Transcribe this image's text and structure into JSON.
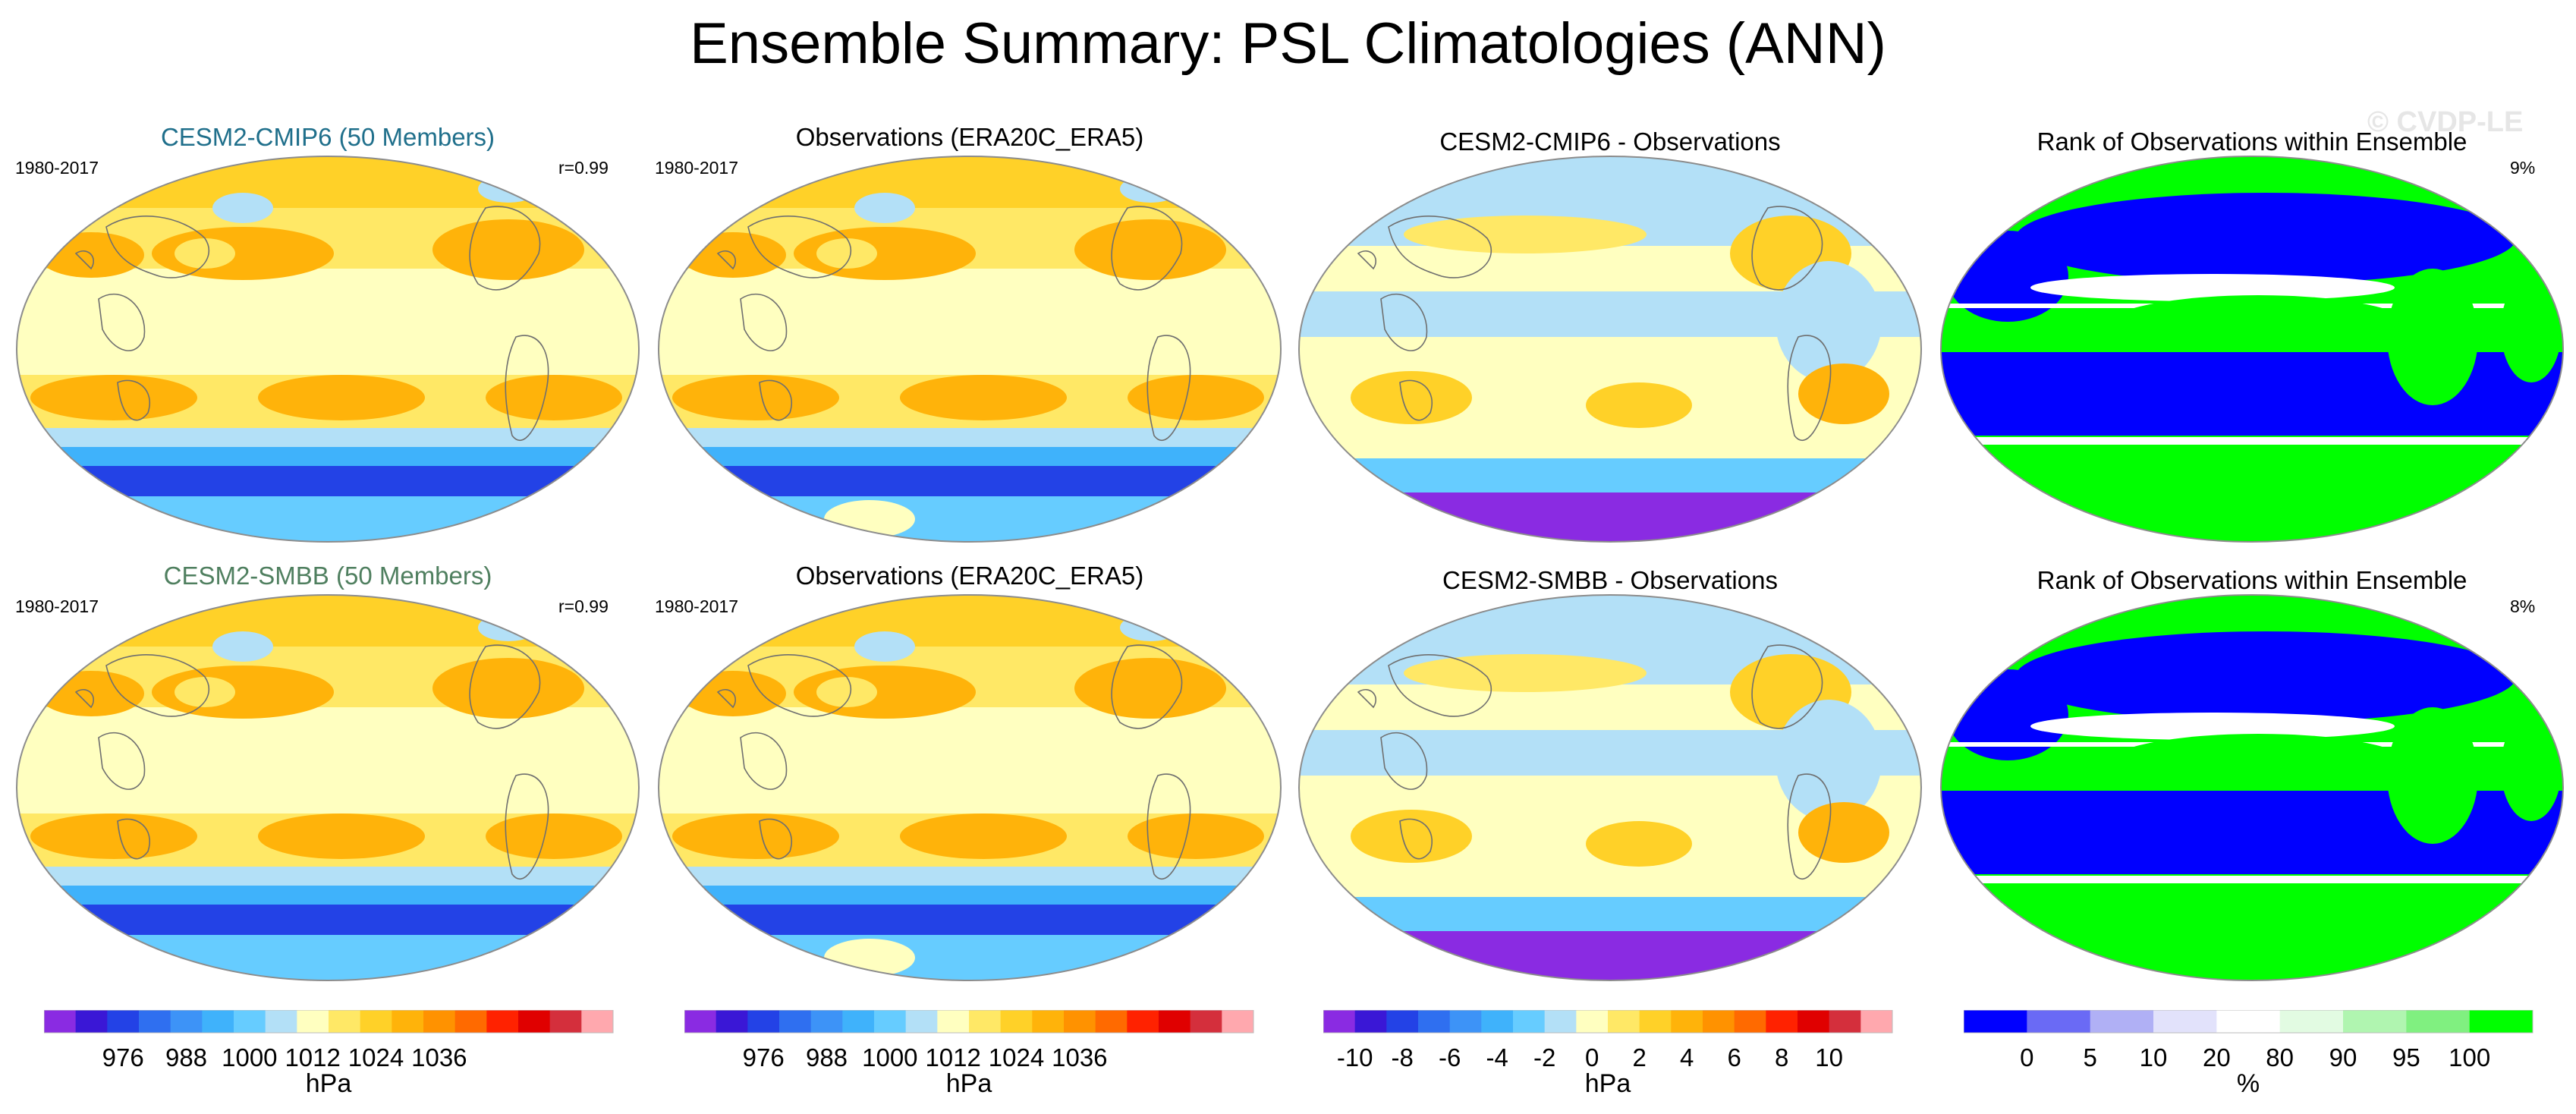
{
  "figure": {
    "title": "Ensemble Summary: PSL Climatologies (ANN)",
    "watermark": "© CVDP-LE"
  },
  "rows": [
    {
      "model_title": "CESM2-CMIP6 (50 Members)",
      "model_title_color": "#1f6f8b",
      "model_period": "1980-2017",
      "model_correlation": "r=0.99",
      "obs_title": "Observations (ERA20C_ERA5)",
      "obs_period": "1980-2017",
      "diff_title": "CESM2-CMIP6 - Observations",
      "rank_title": "Rank of Observations within Ensemble",
      "rank_percent": "9%"
    },
    {
      "model_title": "CESM2-SMBB (50 Members)",
      "model_title_color": "#4f7f5f",
      "model_period": "1980-2017",
      "model_correlation": "r=0.99",
      "obs_title": "Observations (ERA20C_ERA5)",
      "obs_period": "1980-2017",
      "diff_title": "CESM2-SMBB - Observations",
      "rank_title": "Rank of Observations within Ensemble",
      "rank_percent": "8%"
    }
  ],
  "colorbars": [
    {
      "unit": "hPa",
      "tick_labels": [
        "976",
        "988",
        "1000",
        "1012",
        "1024",
        "1036"
      ],
      "colors": [
        "#8a2be2",
        "#3a17d6",
        "#2342e6",
        "#2f6ff0",
        "#3d93f7",
        "#3fb2fb",
        "#66ccff",
        "#b3e0f7",
        "#ffffc0",
        "#ffe866",
        "#ffd128",
        "#ffb30a",
        "#ff9200",
        "#ff6a00",
        "#ff2200",
        "#e00000",
        "#d42f3c",
        "#ffa8ae"
      ]
    },
    {
      "unit": "hPa",
      "tick_labels": [
        "976",
        "988",
        "1000",
        "1012",
        "1024",
        "1036"
      ],
      "colors": [
        "#8a2be2",
        "#3a17d6",
        "#2342e6",
        "#2f6ff0",
        "#3d93f7",
        "#3fb2fb",
        "#66ccff",
        "#b3e0f7",
        "#ffffc0",
        "#ffe866",
        "#ffd128",
        "#ffb30a",
        "#ff9200",
        "#ff6a00",
        "#ff2200",
        "#e00000",
        "#d42f3c",
        "#ffa8ae"
      ]
    },
    {
      "unit": "hPa",
      "tick_labels": [
        "-10",
        "-8",
        "-6",
        "-4",
        "-2",
        "0",
        "2",
        "4",
        "6",
        "8",
        "10"
      ],
      "colors": [
        "#8a2be2",
        "#3a17d6",
        "#2342e6",
        "#2f6ff0",
        "#3d93f7",
        "#3fb2fb",
        "#66ccff",
        "#b3e0f7",
        "#ffffc0",
        "#ffe866",
        "#ffd128",
        "#ffb30a",
        "#ff9200",
        "#ff6a00",
        "#ff2200",
        "#e00000",
        "#d42f3c",
        "#ffa8ae"
      ]
    },
    {
      "unit": "%",
      "tick_labels": [
        "0",
        "5",
        "10",
        "20",
        "80",
        "90",
        "95",
        "100"
      ],
      "colors": [
        "#0000ff",
        "#6a6af5",
        "#b0b0f5",
        "#e2e2fb",
        "#ffffff",
        "#e2fbe2",
        "#b0f5b0",
        "#80f080",
        "#00ff00"
      ]
    }
  ]
}
